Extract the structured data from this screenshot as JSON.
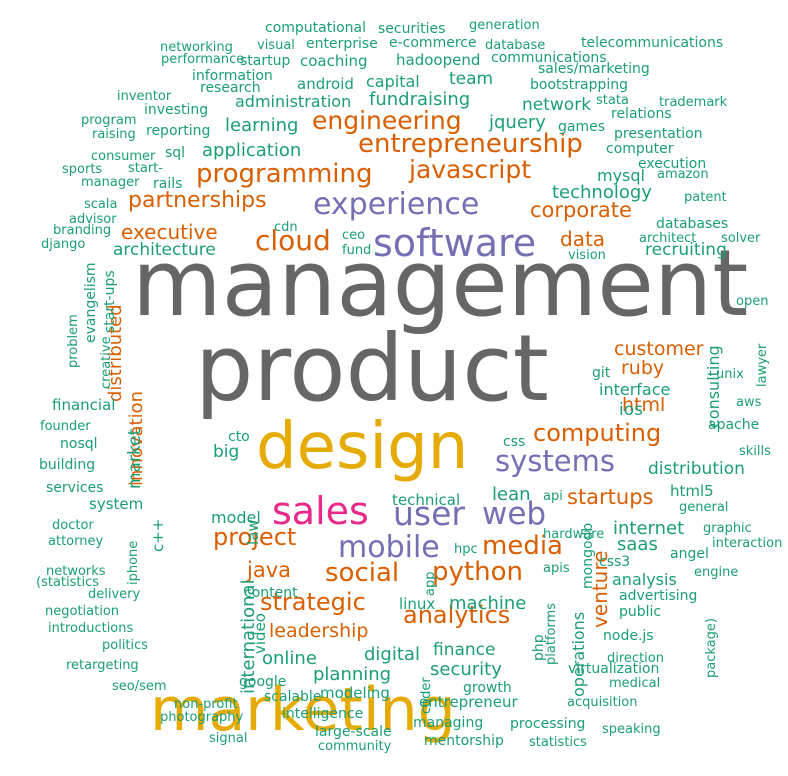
{
  "palette": {
    "gray": "#666666",
    "teal": "#1b9e77",
    "orange": "#d95f02",
    "purple": "#7570b3",
    "pink": "#e7298a",
    "gold": "#e6ab02"
  },
  "words": [
    {
      "t": "management",
      "s": 92,
      "c": "gray"
    },
    {
      "t": "product",
      "s": 92,
      "c": "gray"
    },
    {
      "t": "design",
      "s": 64,
      "c": "gold"
    },
    {
      "t": "marketing",
      "s": 60,
      "c": "gold"
    },
    {
      "t": "software",
      "s": 38,
      "c": "purple"
    },
    {
      "t": "sales",
      "s": 38,
      "c": "pink"
    },
    {
      "t": "experience",
      "s": 30,
      "c": "purple"
    },
    {
      "t": "user",
      "s": 33,
      "c": "purple"
    },
    {
      "t": "web",
      "s": 31,
      "c": "purple"
    },
    {
      "t": "mobile",
      "s": 30,
      "c": "purple"
    },
    {
      "t": "systems",
      "s": 29,
      "c": "purple"
    },
    {
      "t": "cloud",
      "s": 28,
      "c": "orange"
    },
    {
      "t": "programming",
      "s": 26,
      "c": "orange"
    },
    {
      "t": "entrepreneurship",
      "s": 26,
      "c": "orange"
    },
    {
      "t": "engineering",
      "s": 25,
      "c": "orange"
    },
    {
      "t": "javascript",
      "s": 25,
      "c": "orange"
    },
    {
      "t": "partnerships",
      "s": 22,
      "c": "orange"
    },
    {
      "t": "corporate",
      "s": 21,
      "c": "orange"
    },
    {
      "t": "computing",
      "s": 24,
      "c": "orange"
    },
    {
      "t": "python",
      "s": 26,
      "c": "orange"
    },
    {
      "t": "social",
      "s": 26,
      "c": "orange"
    },
    {
      "t": "media",
      "s": 26,
      "c": "orange"
    },
    {
      "t": "project",
      "s": 24,
      "c": "orange"
    },
    {
      "t": "strategic",
      "s": 24,
      "c": "orange"
    },
    {
      "t": "analytics",
      "s": 24,
      "c": "orange"
    },
    {
      "t": "startups",
      "s": 21,
      "c": "orange"
    },
    {
      "t": "venture",
      "s": 20,
      "c": "orange",
      "r": true
    },
    {
      "t": "executive",
      "s": 20,
      "c": "orange"
    },
    {
      "t": "data",
      "s": 20,
      "c": "orange"
    },
    {
      "t": "customer",
      "s": 19,
      "c": "orange"
    },
    {
      "t": "ruby",
      "s": 19,
      "c": "orange"
    },
    {
      "t": "html",
      "s": 19,
      "c": "orange"
    },
    {
      "t": "java",
      "s": 21,
      "c": "orange"
    },
    {
      "t": "leadership",
      "s": 19,
      "c": "orange"
    },
    {
      "t": "distributed",
      "s": 18,
      "c": "orange",
      "r": true
    },
    {
      "t": "innovation",
      "s": 18,
      "c": "orange",
      "r": true
    },
    {
      "t": "fundraising",
      "s": 18,
      "c": "teal"
    },
    {
      "t": "jquery",
      "s": 18,
      "c": "teal"
    },
    {
      "t": "learning",
      "s": 18,
      "c": "teal"
    },
    {
      "t": "application",
      "s": 18,
      "c": "teal"
    },
    {
      "t": "technology",
      "s": 18,
      "c": "teal"
    },
    {
      "t": "recruiting",
      "s": 17,
      "c": "teal"
    },
    {
      "t": "architecture",
      "s": 17,
      "c": "teal"
    },
    {
      "t": "lean",
      "s": 18,
      "c": "teal"
    },
    {
      "t": "internet",
      "s": 18,
      "c": "teal"
    },
    {
      "t": "saas",
      "s": 18,
      "c": "teal"
    },
    {
      "t": "machine",
      "s": 18,
      "c": "teal"
    },
    {
      "t": "finance",
      "s": 17,
      "c": "teal"
    },
    {
      "t": "security",
      "s": 18,
      "c": "teal"
    },
    {
      "t": "online",
      "s": 18,
      "c": "teal"
    },
    {
      "t": "digital",
      "s": 18,
      "c": "teal"
    },
    {
      "t": "planning",
      "s": 18,
      "c": "teal"
    },
    {
      "t": "distribution",
      "s": 17,
      "c": "teal"
    },
    {
      "t": "network",
      "s": 17,
      "c": "teal"
    },
    {
      "t": "administration",
      "s": 16,
      "c": "teal"
    },
    {
      "t": "team",
      "s": 17,
      "c": "teal"
    },
    {
      "t": "capital",
      "s": 16,
      "c": "teal"
    },
    {
      "t": "mysql",
      "s": 16,
      "c": "teal"
    },
    {
      "t": "big",
      "s": 17,
      "c": "teal"
    },
    {
      "t": "ios",
      "s": 17,
      "c": "teal"
    },
    {
      "t": "model",
      "s": 16,
      "c": "teal"
    },
    {
      "t": "international",
      "s": 18,
      "c": "teal",
      "r": true
    },
    {
      "t": "market",
      "s": 17,
      "c": "teal",
      "r": true
    },
    {
      "t": "consulting",
      "s": 16,
      "c": "teal",
      "r": true
    },
    {
      "t": "operations",
      "s": 16,
      "c": "teal",
      "r": true
    },
    {
      "t": "interface",
      "s": 16,
      "c": "teal"
    },
    {
      "t": "analysis",
      "s": 16,
      "c": "teal"
    },
    {
      "t": "financial",
      "s": 15,
      "c": "teal"
    },
    {
      "t": "system",
      "s": 15,
      "c": "teal"
    },
    {
      "t": "technical",
      "s": 15,
      "c": "teal"
    },
    {
      "t": "modeling",
      "s": 15,
      "c": "teal"
    },
    {
      "t": "growth",
      "s": 14,
      "c": "teal"
    },
    {
      "t": "entrepreneur",
      "s": 15,
      "c": "teal"
    },
    {
      "t": "intelligence",
      "s": 14,
      "c": "teal"
    },
    {
      "t": "scalable",
      "s": 14,
      "c": "teal"
    },
    {
      "t": "google",
      "s": 14,
      "c": "teal"
    },
    {
      "t": "large-scale",
      "s": 14,
      "c": "teal"
    },
    {
      "t": "managing",
      "s": 14,
      "c": "teal"
    },
    {
      "t": "processing",
      "s": 14,
      "c": "teal"
    },
    {
      "t": "mentorship",
      "s": 14,
      "c": "teal"
    },
    {
      "t": "community",
      "s": 13,
      "c": "teal"
    },
    {
      "t": "statistics",
      "s": 13,
      "c": "teal"
    },
    {
      "t": "acquisition",
      "s": 13,
      "c": "teal"
    },
    {
      "t": "speaking",
      "s": 13,
      "c": "teal"
    },
    {
      "t": "medical",
      "s": 13,
      "c": "teal"
    },
    {
      "t": "virtualization",
      "s": 14,
      "c": "teal"
    },
    {
      "t": "direction",
      "s": 13,
      "c": "teal"
    },
    {
      "t": "node.js",
      "s": 14,
      "c": "teal"
    },
    {
      "t": "public",
      "s": 14,
      "c": "teal"
    },
    {
      "t": "advertising",
      "s": 14,
      "c": "teal"
    },
    {
      "t": "engine",
      "s": 13,
      "c": "teal"
    },
    {
      "t": "angel",
      "s": 14,
      "c": "teal"
    },
    {
      "t": "interaction",
      "s": 13,
      "c": "teal"
    },
    {
      "t": "graphic",
      "s": 13,
      "c": "teal"
    },
    {
      "t": "general",
      "s": 13,
      "c": "teal"
    },
    {
      "t": "html5",
      "s": 15,
      "c": "teal"
    },
    {
      "t": "skills",
      "s": 13,
      "c": "teal"
    },
    {
      "t": "apache",
      "s": 14,
      "c": "teal"
    },
    {
      "t": "aws",
      "s": 13,
      "c": "teal"
    },
    {
      "t": "unix",
      "s": 13,
      "c": "teal"
    },
    {
      "t": "lawyer",
      "s": 13,
      "c": "teal",
      "r": true
    },
    {
      "t": "open",
      "s": 13,
      "c": "teal"
    },
    {
      "t": "git",
      "s": 14,
      "c": "teal"
    },
    {
      "t": "css3",
      "s": 14,
      "c": "teal"
    },
    {
      "t": "apis",
      "s": 13,
      "c": "teal"
    },
    {
      "t": "hardware",
      "s": 13,
      "c": "teal"
    },
    {
      "t": "api",
      "s": 13,
      "c": "teal"
    },
    {
      "t": "hpc",
      "s": 13,
      "c": "teal"
    },
    {
      "t": "css",
      "s": 14,
      "c": "teal"
    },
    {
      "t": "linux",
      "s": 15,
      "c": "teal"
    },
    {
      "t": "mongodb",
      "s": 14,
      "c": "teal",
      "r": true
    },
    {
      "t": "platforms",
      "s": 13,
      "c": "teal",
      "r": true
    },
    {
      "t": "php",
      "s": 14,
      "c": "teal",
      "r": true
    },
    {
      "t": "coder",
      "s": 13,
      "c": "teal",
      "r": true
    },
    {
      "t": "app",
      "s": 13,
      "c": "teal",
      "r": true
    },
    {
      "t": "package)",
      "s": 13,
      "c": "teal",
      "r": true
    },
    {
      "t": "video",
      "s": 15,
      "c": "teal",
      "r": true
    },
    {
      "t": "content",
      "s": 14,
      "c": "teal"
    },
    {
      "t": "law",
      "s": 15,
      "c": "teal",
      "r": true
    },
    {
      "t": "cto",
      "s": 14,
      "c": "teal"
    },
    {
      "t": "c++",
      "s": 15,
      "c": "teal",
      "r": true
    },
    {
      "t": "iphone",
      "s": 13,
      "c": "teal",
      "r": true
    },
    {
      "t": "databases",
      "s": 14,
      "c": "teal"
    },
    {
      "t": "architect",
      "s": 13,
      "c": "teal"
    },
    {
      "t": "solver",
      "s": 13,
      "c": "teal"
    },
    {
      "t": "patent",
      "s": 13,
      "c": "teal"
    },
    {
      "t": "amazon",
      "s": 13,
      "c": "teal"
    },
    {
      "t": "execution",
      "s": 14,
      "c": "teal"
    },
    {
      "t": "computer",
      "s": 14,
      "c": "teal"
    },
    {
      "t": "presentation",
      "s": 14,
      "c": "teal"
    },
    {
      "t": "trademark",
      "s": 13,
      "c": "teal"
    },
    {
      "t": "relations",
      "s": 14,
      "c": "teal"
    },
    {
      "t": "stata",
      "s": 13,
      "c": "teal"
    },
    {
      "t": "games",
      "s": 14,
      "c": "teal"
    },
    {
      "t": "bootstrapping",
      "s": 14,
      "c": "teal"
    },
    {
      "t": "sales/marketing",
      "s": 14,
      "c": "teal"
    },
    {
      "t": "telecommunications",
      "s": 14,
      "c": "teal"
    },
    {
      "t": "communications",
      "s": 14,
      "c": "teal"
    },
    {
      "t": "database",
      "s": 13,
      "c": "teal"
    },
    {
      "t": "generation",
      "s": 13,
      "c": "teal"
    },
    {
      "t": "securities",
      "s": 14,
      "c": "teal"
    },
    {
      "t": "e-commerce",
      "s": 14,
      "c": "teal"
    },
    {
      "t": "hadoopend",
      "s": 15,
      "c": "teal"
    },
    {
      "t": "computational",
      "s": 14,
      "c": "teal"
    },
    {
      "t": "enterprise",
      "s": 14,
      "c": "teal"
    },
    {
      "t": "visual",
      "s": 13,
      "c": "teal"
    },
    {
      "t": "networking",
      "s": 13,
      "c": "teal"
    },
    {
      "t": "performance",
      "s": 13,
      "c": "teal"
    },
    {
      "t": "startup",
      "s": 14,
      "c": "teal"
    },
    {
      "t": "coaching",
      "s": 15,
      "c": "teal"
    },
    {
      "t": "information",
      "s": 14,
      "c": "teal"
    },
    {
      "t": "android",
      "s": 15,
      "c": "teal"
    },
    {
      "t": "research",
      "s": 14,
      "c": "teal"
    },
    {
      "t": "inventor",
      "s": 13,
      "c": "teal"
    },
    {
      "t": "investing",
      "s": 14,
      "c": "teal"
    },
    {
      "t": "program",
      "s": 13,
      "c": "teal"
    },
    {
      "t": "raising",
      "s": 13,
      "c": "teal"
    },
    {
      "t": "reporting",
      "s": 14,
      "c": "teal"
    },
    {
      "t": "consumer",
      "s": 13,
      "c": "teal"
    },
    {
      "t": "sql",
      "s": 14,
      "c": "teal"
    },
    {
      "t": "sports",
      "s": 13,
      "c": "teal"
    },
    {
      "t": "start-",
      "s": 13,
      "c": "teal"
    },
    {
      "t": "manager",
      "s": 13,
      "c": "teal"
    },
    {
      "t": "rails",
      "s": 14,
      "c": "teal"
    },
    {
      "t": "scala",
      "s": 13,
      "c": "teal"
    },
    {
      "t": "advisor",
      "s": 13,
      "c": "teal"
    },
    {
      "t": "branding",
      "s": 13,
      "c": "teal"
    },
    {
      "t": "django",
      "s": 13,
      "c": "teal"
    },
    {
      "t": "ceo",
      "s": 13,
      "c": "teal"
    },
    {
      "t": "fund",
      "s": 13,
      "c": "teal"
    },
    {
      "t": "cdn",
      "s": 13,
      "c": "teal"
    },
    {
      "t": "vision",
      "s": 13,
      "c": "teal"
    },
    {
      "t": "evangelism",
      "s": 14,
      "c": "teal",
      "r": true
    },
    {
      "t": "start-ups",
      "s": 14,
      "c": "teal",
      "r": true
    },
    {
      "t": "problem",
      "s": 13,
      "c": "teal",
      "r": true
    },
    {
      "t": "creative",
      "s": 13,
      "c": "teal",
      "r": true
    },
    {
      "t": "founder",
      "s": 13,
      "c": "teal"
    },
    {
      "t": "nosql",
      "s": 14,
      "c": "teal"
    },
    {
      "t": "building",
      "s": 14,
      "c": "teal"
    },
    {
      "t": "services",
      "s": 14,
      "c": "teal"
    },
    {
      "t": "doctor",
      "s": 13,
      "c": "teal"
    },
    {
      "t": "attorney",
      "s": 13,
      "c": "teal"
    },
    {
      "t": "networks",
      "s": 13,
      "c": "teal"
    },
    {
      "t": "(statistics",
      "s": 13,
      "c": "teal"
    },
    {
      "t": "delivery",
      "s": 13,
      "c": "teal"
    },
    {
      "t": "negotiation",
      "s": 13,
      "c": "teal"
    },
    {
      "t": "introductions",
      "s": 13,
      "c": "teal"
    },
    {
      "t": "politics",
      "s": 13,
      "c": "teal"
    },
    {
      "t": "retargeting",
      "s": 13,
      "c": "teal"
    },
    {
      "t": "seo/sem",
      "s": 13,
      "c": "teal"
    },
    {
      "t": "non-profit",
      "s": 13,
      "c": "teal"
    },
    {
      "t": "photography",
      "s": 13,
      "c": "teal"
    },
    {
      "t": "signal",
      "s": 13,
      "c": "teal"
    }
  ]
}
